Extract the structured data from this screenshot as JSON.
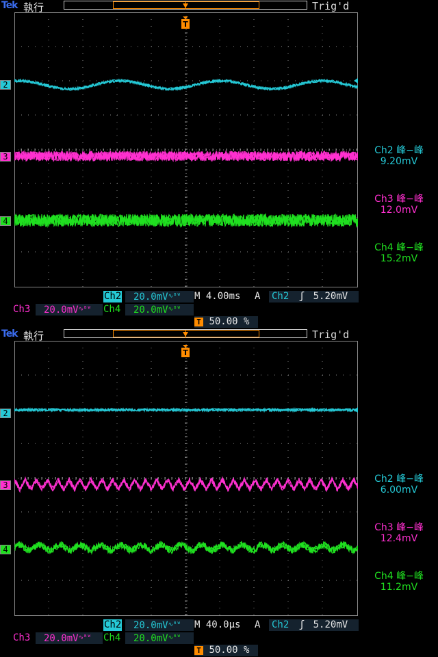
{
  "screens": [
    {
      "brand": "Tek",
      "run_state": "執行",
      "trigger_status": "Trig'd",
      "trigger_marker": "T",
      "channels": {
        "ch2": {
          "label": "Ch2",
          "scale": "20.0mV",
          "marker": "2",
          "color": "#25c9d6",
          "pk_label": "Ch2 峰−峰",
          "pk_value": "9.20mV"
        },
        "ch3": {
          "label": "Ch3",
          "scale": "20.0mV",
          "marker": "3",
          "color": "#ff30d0",
          "pk_label": "Ch3 峰−峰",
          "pk_value": "12.0mV"
        },
        "ch4": {
          "label": "Ch4",
          "scale": "20.0mV",
          "marker": "4",
          "color": "#20e020",
          "pk_label": "Ch4 峰−峰",
          "pk_value": "15.2mV"
        }
      },
      "timebase": "M 4.00ms",
      "trigger_mode": "A",
      "trigger_source": "Ch2",
      "trigger_level": "5.20mV",
      "trigger_position": "50.00 %"
    },
    {
      "brand": "Tek",
      "run_state": "執行",
      "trigger_status": "Trig'd",
      "trigger_marker": "T",
      "channels": {
        "ch2": {
          "label": "Ch2",
          "scale": "20.0mV",
          "marker": "2",
          "color": "#25c9d6",
          "pk_label": "Ch2 峰−峰",
          "pk_value": "6.00mV"
        },
        "ch3": {
          "label": "Ch3",
          "scale": "20.0mV",
          "marker": "3",
          "color": "#ff30d0",
          "pk_label": "Ch3 峰−峰",
          "pk_value": "12.4mV"
        },
        "ch4": {
          "label": "Ch4",
          "scale": "20.0mV",
          "marker": "4",
          "color": "#20e020",
          "pk_label": "Ch4 峰−峰",
          "pk_value": "11.2mV"
        }
      },
      "timebase": "M 40.0µs",
      "trigger_mode": "A",
      "trigger_source": "Ch2",
      "trigger_level": "5.20mV",
      "trigger_position": "50.00 %"
    }
  ],
  "colors": {
    "trigger": "#ff8c00",
    "graticule": "#8a8a8a",
    "statusbar": "#1b2a3b"
  }
}
